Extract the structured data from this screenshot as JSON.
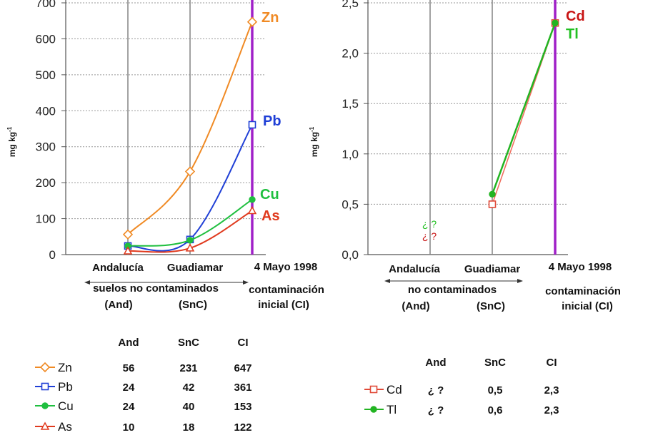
{
  "chart_data": [
    {
      "type": "line",
      "ylabel": "mg kg-1",
      "ylim": [
        0,
        700
      ],
      "yticks": [
        "0",
        "100",
        "200",
        "300",
        "400",
        "500",
        "600",
        "700"
      ],
      "categories": [
        "Andalucía",
        "Guadiamar",
        "4 Mayo 1998"
      ],
      "xgroups": [
        "suelos  no contaminados",
        "contaminación",
        "inicial  (CI)"
      ],
      "xsub": [
        "(And)",
        "(SnC)"
      ],
      "series": [
        {
          "name": "Zn",
          "values": [
            56,
            231,
            647
          ],
          "color": "#F08A24",
          "marker": "diamond"
        },
        {
          "name": "Pb",
          "values": [
            24,
            42,
            361
          ],
          "color": "#1F3FD6",
          "marker": "square"
        },
        {
          "name": "Cu",
          "values": [
            24,
            40,
            153
          ],
          "color": "#1FBF3F",
          "marker": "circle"
        },
        {
          "name": "As",
          "values": [
            10,
            18,
            122
          ],
          "color": "#E03A1E",
          "marker": "triangle"
        }
      ],
      "table": {
        "headers": [
          "And",
          "SnC",
          "CI"
        ],
        "rows": [
          {
            "label": "Zn",
            "values": [
              "56",
              "231",
              "647"
            ]
          },
          {
            "label": "Pb",
            "values": [
              "24",
              "42",
              "361"
            ]
          },
          {
            "label": "Cu",
            "values": [
              "24",
              "40",
              "153"
            ]
          },
          {
            "label": "As",
            "values": [
              "10",
              "18",
              "122"
            ]
          }
        ]
      }
    },
    {
      "type": "line",
      "ylabel": "mg kg-1",
      "ylim": [
        0,
        2.5
      ],
      "yticks": [
        "0,0",
        "0,5",
        "1,0",
        "1,5",
        "2,0",
        "2,5"
      ],
      "categories": [
        "Andalucía",
        "Guadiamar",
        "4 Mayo 1998"
      ],
      "xgroups": [
        "no contaminados",
        "contaminación",
        "inicial  (CI)"
      ],
      "xsub": [
        "(And)",
        "(SnC)"
      ],
      "unknown_marks": [
        "¿ ?",
        "¿ ?"
      ],
      "series": [
        {
          "name": "Cd",
          "values": [
            null,
            0.5,
            2.3
          ],
          "color": "#F07060",
          "label_color": "#C81414",
          "marker": "square"
        },
        {
          "name": "Tl",
          "values": [
            null,
            0.6,
            2.3
          ],
          "color": "#22B422",
          "label_color": "#22C022",
          "marker": "circle"
        }
      ],
      "table": {
        "headers": [
          "And",
          "SnC",
          "CI"
        ],
        "rows": [
          {
            "label": "Cd",
            "values": [
              "¿ ?",
              "0,5",
              "2,3"
            ]
          },
          {
            "label": "Tl",
            "values": [
              "¿ ?",
              "0,6",
              "2,3"
            ]
          }
        ]
      }
    }
  ]
}
